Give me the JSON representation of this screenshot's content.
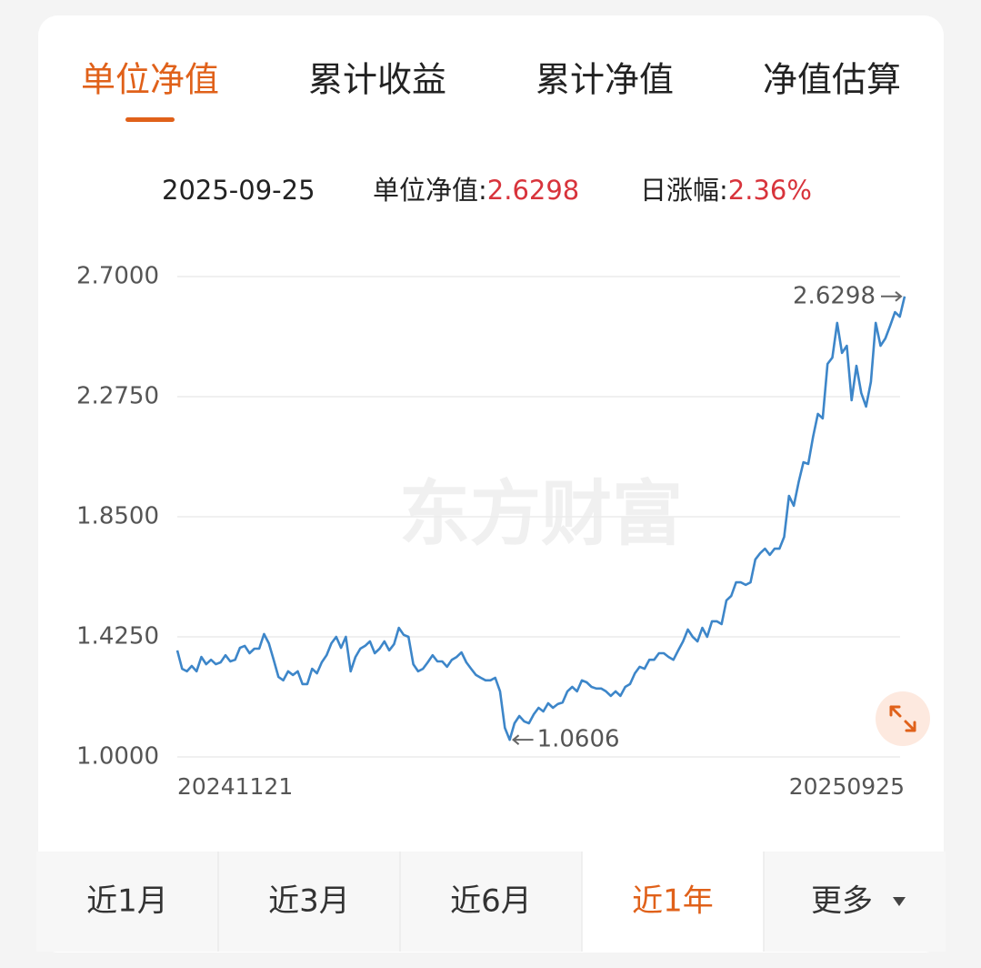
{
  "tabs": [
    "单位净值",
    "累计收益",
    "累计净值",
    "净值估算"
  ],
  "active_tab": 0,
  "info": {
    "date": "2025-09-25",
    "nav_label": "单位净值:",
    "nav_value": "2.6298",
    "change_label": "日涨幅:",
    "change_value": "2.36%"
  },
  "chart_data": {
    "type": "line",
    "watermark": "东方财富",
    "categories": [
      "20241121",
      null,
      null,
      null,
      null,
      null,
      null,
      null,
      null,
      null,
      null,
      null,
      null,
      null,
      null,
      null,
      null,
      null,
      null,
      null,
      null,
      null,
      null,
      null,
      null,
      null,
      null,
      null,
      null,
      null,
      null,
      null,
      null,
      null,
      null,
      null,
      null,
      null,
      null,
      null,
      null,
      null,
      null,
      null,
      null,
      null,
      null,
      null,
      null,
      null,
      null,
      null,
      null,
      null,
      null,
      null,
      null,
      null,
      null,
      null,
      null,
      null,
      null,
      null,
      null,
      null,
      null,
      null,
      null,
      null,
      null,
      null,
      null,
      null,
      null,
      null,
      null,
      null,
      null,
      null,
      null,
      null,
      null,
      null,
      null,
      null,
      null,
      null,
      null,
      null,
      null,
      null,
      null,
      null,
      null,
      null,
      null,
      null,
      null,
      null,
      null,
      null,
      null,
      null,
      null,
      null,
      null,
      null,
      null,
      null,
      null,
      null,
      null,
      null,
      null,
      null,
      null,
      null,
      null,
      null,
      null,
      null,
      null,
      null,
      null,
      null,
      null,
      null,
      null,
      null,
      null,
      null,
      null,
      null,
      null,
      null,
      null,
      null,
      null,
      null,
      null,
      null,
      null,
      null,
      null,
      null,
      null,
      null,
      null,
      null,
      null,
      "20250925"
    ],
    "series": [
      {
        "color": "#3d86c9",
        "values": [
          1.377,
          1.312,
          1.303,
          1.322,
          1.303,
          1.354,
          1.328,
          1.344,
          1.328,
          1.335,
          1.36,
          1.338,
          1.344,
          1.386,
          1.393,
          1.367,
          1.383,
          1.383,
          1.435,
          1.402,
          1.344,
          1.283,
          1.271,
          1.303,
          1.29,
          1.303,
          1.258,
          1.258,
          1.312,
          1.296,
          1.335,
          1.36,
          1.402,
          1.425,
          1.386,
          1.425,
          1.303,
          1.354,
          1.383,
          1.393,
          1.409,
          1.367,
          1.383,
          1.409,
          1.377,
          1.399,
          1.457,
          1.432,
          1.425,
          1.328,
          1.303,
          1.312,
          1.335,
          1.36,
          1.338,
          1.338,
          1.319,
          1.344,
          1.354,
          1.37,
          1.335,
          1.312,
          1.29,
          1.28,
          1.271,
          1.271,
          1.28,
          1.232,
          1.103,
          1.0606,
          1.119,
          1.145,
          1.126,
          1.119,
          1.151,
          1.174,
          1.161,
          1.19,
          1.174,
          1.187,
          1.193,
          1.232,
          1.248,
          1.232,
          1.271,
          1.264,
          1.248,
          1.242,
          1.242,
          1.232,
          1.216,
          1.232,
          1.216,
          1.248,
          1.258,
          1.296,
          1.319,
          1.312,
          1.344,
          1.344,
          1.367,
          1.367,
          1.354,
          1.344,
          1.377,
          1.409,
          1.451,
          1.425,
          1.409,
          1.457,
          1.425,
          1.48,
          1.48,
          1.47,
          1.554,
          1.57,
          1.618,
          1.618,
          1.609,
          1.618,
          1.699,
          1.721,
          1.737,
          1.715,
          1.737,
          1.737,
          1.779,
          1.924,
          1.889,
          1.972,
          2.043,
          2.037,
          2.133,
          2.214,
          2.198,
          2.391,
          2.413,
          2.536,
          2.43,
          2.455,
          2.262,
          2.384,
          2.288,
          2.24,
          2.327,
          2.536,
          2.455,
          2.481,
          2.526,
          2.574,
          2.558,
          2.6298
        ]
      }
    ],
    "annotated_points": [
      69,
      151
    ],
    "ylim": [
      1.0,
      2.7
    ],
    "yticks": [
      {
        "value": 1.0,
        "label": "1.0000"
      },
      {
        "value": 1.425,
        "label": "1.4250"
      },
      {
        "value": 1.85,
        "label": "1.8500"
      },
      {
        "value": 2.275,
        "label": "2.2750"
      },
      {
        "value": 2.7,
        "label": "2.7000"
      }
    ],
    "grid": true
  },
  "ranges": [
    "近1月",
    "近3月",
    "近6月",
    "近1年",
    "更多"
  ],
  "active_range": 3
}
